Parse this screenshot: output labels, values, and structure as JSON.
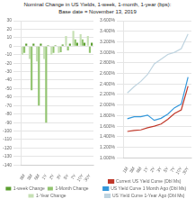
{
  "chart_data": [
    {
      "type": "bar",
      "title": "Nominal Change in US Yields, 1-week, 1-month, 1-year (bps):",
      "subtitle": "Base date = November 13, 2019",
      "categories": [
        "3M",
        "3M",
        "6M",
        "1Y",
        "2Y",
        "3Y",
        "5Y",
        "7Y",
        "10Y",
        "30Y"
      ],
      "series": [
        {
          "name": "1-Year Change",
          "color": "#c6e0b4",
          "values": [
            -10,
            -15,
            -18,
            -15,
            -10,
            -8,
            12,
            18,
            14,
            12
          ]
        },
        {
          "name": "1-Month Change",
          "color": "#92c470",
          "values": [
            -8,
            -52,
            -70,
            -90,
            -8,
            -7,
            -5,
            8,
            8,
            -8
          ]
        },
        {
          "name": "1-week Change",
          "color": "#5a9e2f",
          "values": [
            3,
            3,
            3,
            1,
            1,
            2,
            3,
            4,
            4,
            4
          ]
        }
      ],
      "ylim": [
        -140,
        30
      ],
      "yticks": [
        30,
        20,
        10,
        0,
        -10,
        -20,
        -30,
        -40,
        -50,
        -60,
        -70,
        -80,
        -90,
        -100,
        -110,
        -120,
        -130,
        -140
      ],
      "grid": true,
      "legend": "bottom"
    },
    {
      "type": "line",
      "categories": [
        "1M",
        "3M",
        "6M",
        "1Y",
        "2Y",
        "3Y",
        "5Y",
        "7Y",
        "10Y",
        "30Y"
      ],
      "series": [
        {
          "name": "US Yield Curve 1-Year Ago (Dbl Ms)",
          "color": "#bfd4e0",
          "values": [
            2.23,
            2.35,
            2.45,
            2.58,
            2.78,
            2.87,
            2.96,
            3.0,
            3.07,
            3.35
          ]
        },
        {
          "name": "US Yield Curve 1 Month Ago (Dbl Ms)",
          "color": "#3498db",
          "values": [
            1.74,
            1.78,
            1.78,
            1.81,
            1.71,
            1.75,
            1.83,
            1.95,
            2.02,
            2.53
          ]
        },
        {
          "name": "Current US Yield Curve (Dbl Ms)",
          "color": "#c0392b",
          "values": [
            1.5,
            1.52,
            1.53,
            1.57,
            1.6,
            1.64,
            1.73,
            1.84,
            1.91,
            2.36
          ]
        }
      ],
      "ylim": [
        1.0,
        3.6
      ],
      "yticks": [
        {
          "value": 1.0,
          "label": "1.000%"
        },
        {
          "value": 1.2,
          "label": "1.200%"
        },
        {
          "value": 1.4,
          "label": "1.400%"
        },
        {
          "value": 1.6,
          "label": "1.600%"
        },
        {
          "value": 1.8,
          "label": "1.800%"
        },
        {
          "value": 2.0,
          "label": "2.000%"
        },
        {
          "value": 2.2,
          "label": "2.200%"
        },
        {
          "value": 2.4,
          "label": "2.400%"
        },
        {
          "value": 2.6,
          "label": "2.600%"
        },
        {
          "value": 2.8,
          "label": "2.800%"
        },
        {
          "value": 3.0,
          "label": "3.000%"
        },
        {
          "value": 3.2,
          "label": "3.200%"
        },
        {
          "value": 3.4,
          "label": "3.400%"
        },
        {
          "value": 3.6,
          "label": "3.600%"
        }
      ],
      "grid": true,
      "legend": "bottom"
    }
  ]
}
